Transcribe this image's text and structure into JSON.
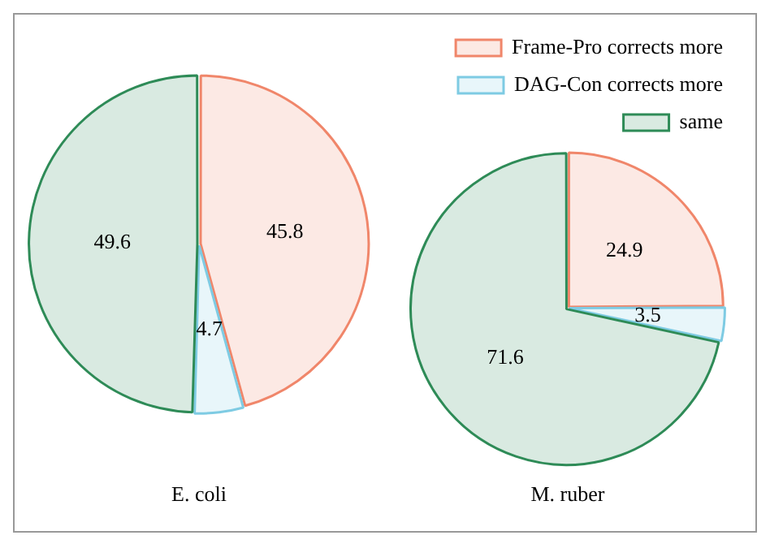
{
  "chart_data": [
    {
      "type": "pie",
      "xlabel": "E. coli",
      "categories": [
        null,
        null,
        null
      ],
      "values": [
        45.8,
        4.7,
        49.6
      ],
      "colors": [
        "#f0866a",
        "#7ecbe3",
        "#2e8b57"
      ],
      "data_labels": true,
      "legend": false
    },
    {
      "type": "pie",
      "xlabel": "M. ruber",
      "categories": [
        "Frame-Pro corrects more",
        "DAG-Con corrects more",
        "same"
      ],
      "values": [
        24.9,
        3.5,
        71.6
      ],
      "colors": [
        "#f0866a",
        "#7ecbe3",
        "#2e8b57"
      ],
      "data_labels": true,
      "legend": "top right"
    }
  ]
}
